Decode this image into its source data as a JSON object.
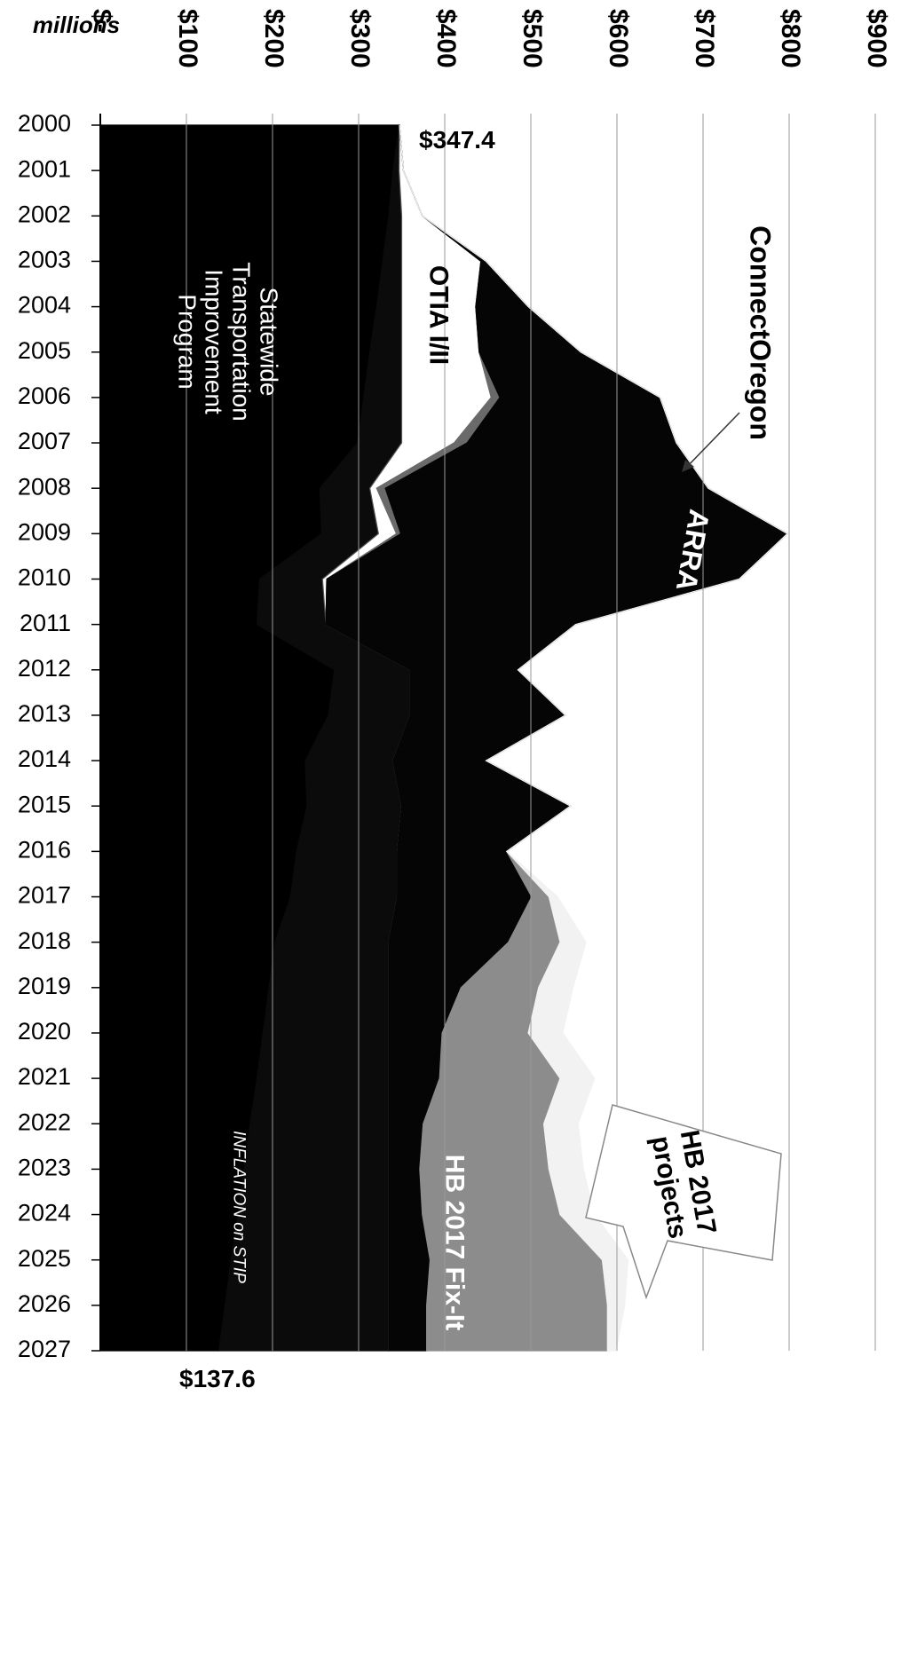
{
  "chart_data": {
    "type": "area",
    "orientation": "horizontal",
    "stacked": true,
    "y_label": "millions",
    "categories": [
      "2000",
      "2001",
      "2002",
      "2003",
      "2004",
      "2005",
      "2006",
      "2007",
      "2008",
      "2009",
      "2010",
      "2011",
      "2012",
      "2013",
      "2014",
      "2015",
      "2016",
      "2017",
      "2018",
      "2019",
      "2020",
      "2021",
      "2022",
      "2023",
      "2024",
      "2025",
      "2026",
      "2027"
    ],
    "ylim": [
      0,
      900
    ],
    "yticks": [
      {
        "value": 0,
        "label": "$-"
      },
      {
        "value": 100,
        "label": "$100"
      },
      {
        "value": 200,
        "label": "$200"
      },
      {
        "value": 300,
        "label": "$300"
      },
      {
        "value": 400,
        "label": "$400"
      },
      {
        "value": 500,
        "label": "$500"
      },
      {
        "value": 600,
        "label": "$600"
      },
      {
        "value": 700,
        "label": "$700"
      },
      {
        "value": 800,
        "label": "$800"
      },
      {
        "value": 900,
        "label": "$900"
      }
    ],
    "grid": true,
    "series": [
      {
        "name": "Statewide Transportation Improvement Program",
        "color": "#000000",
        "values": [
          347.4,
          340,
          335,
          328,
          321,
          313,
          306,
          299,
          255,
          257,
          185,
          182,
          272,
          265,
          238,
          240,
          228,
          221,
          203,
          196,
          189,
          182,
          174,
          167,
          160,
          152,
          145,
          137.6
        ],
        "value_labels": [
          "$347.4",
          null,
          null,
          null,
          null,
          null,
          null,
          null,
          null,
          null,
          null,
          null,
          null,
          null,
          null,
          null,
          null,
          null,
          null,
          null,
          null,
          null,
          null,
          null,
          null,
          null,
          null,
          "$137.6"
        ]
      },
      {
        "name": "INFLATION on STIP",
        "color": "#0b0b0b",
        "values": [
          0,
          7,
          15,
          22,
          29,
          37,
          44,
          51,
          58,
          66,
          73,
          80,
          88,
          95,
          102,
          110,
          117,
          124,
          132,
          139,
          146,
          153,
          161,
          168,
          175,
          183,
          190,
          197.4
        ]
      },
      {
        "name": "OTIA I/II",
        "color": "#ffffff",
        "values": [
          0,
          5,
          24,
          92,
          86,
          90,
          104,
          61,
          8,
          21,
          5,
          0,
          0,
          0,
          0,
          0,
          0,
          0,
          0,
          0,
          0,
          0,
          0,
          0,
          0,
          0,
          0,
          0
        ]
      },
      {
        "name": "ConnectOregon",
        "color": "#6a6a6a",
        "values": [
          0,
          0,
          0,
          0,
          0,
          0,
          10,
          15,
          10,
          5,
          0,
          0,
          0,
          0,
          0,
          0,
          0,
          0,
          0,
          0,
          0,
          0,
          0,
          0,
          0,
          0,
          0,
          0
        ]
      },
      {
        "name": "ARRA",
        "color": "#050505",
        "values": [
          0,
          0,
          0,
          6,
          61,
          118,
          186,
          243,
          375,
          449,
          479,
          290,
          125,
          180,
          108,
          196,
          127,
          156,
          139,
          84,
          62,
          59,
          40,
          36,
          39,
          48,
          44,
          44
        ]
      },
      {
        "name": "HB 2017 Fix-It",
        "color": "#8c8c8c",
        "values": [
          0,
          0,
          0,
          0,
          0,
          0,
          0,
          0,
          0,
          0,
          0,
          0,
          0,
          0,
          0,
          0,
          0,
          20,
          60,
          90,
          100,
          140,
          140,
          150,
          160,
          200,
          210,
          210
        ]
      },
      {
        "name": "HB 2017 projects",
        "color": "#f2f2f2",
        "values": [
          0,
          0,
          0,
          0,
          0,
          0,
          0,
          0,
          0,
          0,
          0,
          0,
          0,
          0,
          0,
          0,
          0,
          10,
          30,
          40,
          40,
          40,
          40,
          40,
          40,
          30,
          20,
          10
        ]
      }
    ]
  }
}
